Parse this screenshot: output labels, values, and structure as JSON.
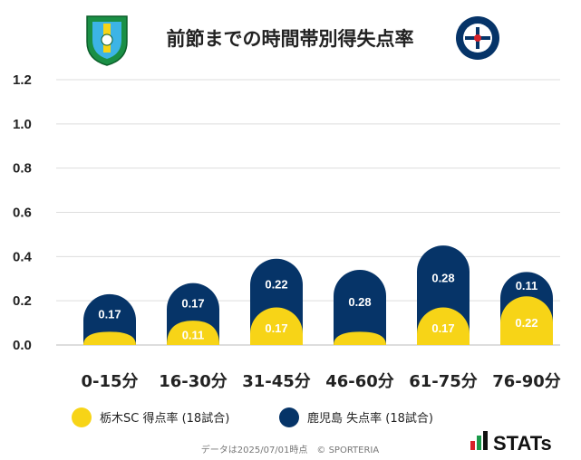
{
  "title": "前節までの時間帯別得失点率",
  "colors": {
    "team_a": "#f7d417",
    "team_b": "#063468",
    "grid": "#dddddd",
    "text": "#222222"
  },
  "chart_data": {
    "type": "bar",
    "categories": [
      "0-15分",
      "16-30分",
      "31-45分",
      "46-60分",
      "61-75分",
      "76-90分"
    ],
    "series": [
      {
        "name": "栃木SC 得点率 (18試合)",
        "values": [
          0.06,
          0.11,
          0.17,
          0.06,
          0.17,
          0.22
        ],
        "labels": [
          "",
          "0.11",
          "0.17",
          "",
          "0.17",
          "0.22"
        ],
        "color": "#f7d417"
      },
      {
        "name": "鹿児島 失点率 (18試合)",
        "values": [
          0.17,
          0.17,
          0.22,
          0.28,
          0.28,
          0.11
        ],
        "labels": [
          "0.17",
          "0.17",
          "0.22",
          "0.28",
          "0.28",
          "0.11"
        ],
        "color": "#063468"
      }
    ],
    "yticks": [
      "1.2",
      "1.0",
      "0.8",
      "0.6",
      "0.4",
      "0.2",
      "0.0"
    ],
    "ylim": [
      0,
      1.2
    ],
    "grid": true,
    "legend_position": "bottom-left"
  },
  "logos": {
    "left": "tochigi-sc-emblem",
    "right": "kagoshima-united-fc-emblem",
    "right_text": "KAGOSHIMA UNITED FC"
  },
  "footer": "データは2025/07/01時点　© SPORTERIA",
  "brand": "STATs"
}
